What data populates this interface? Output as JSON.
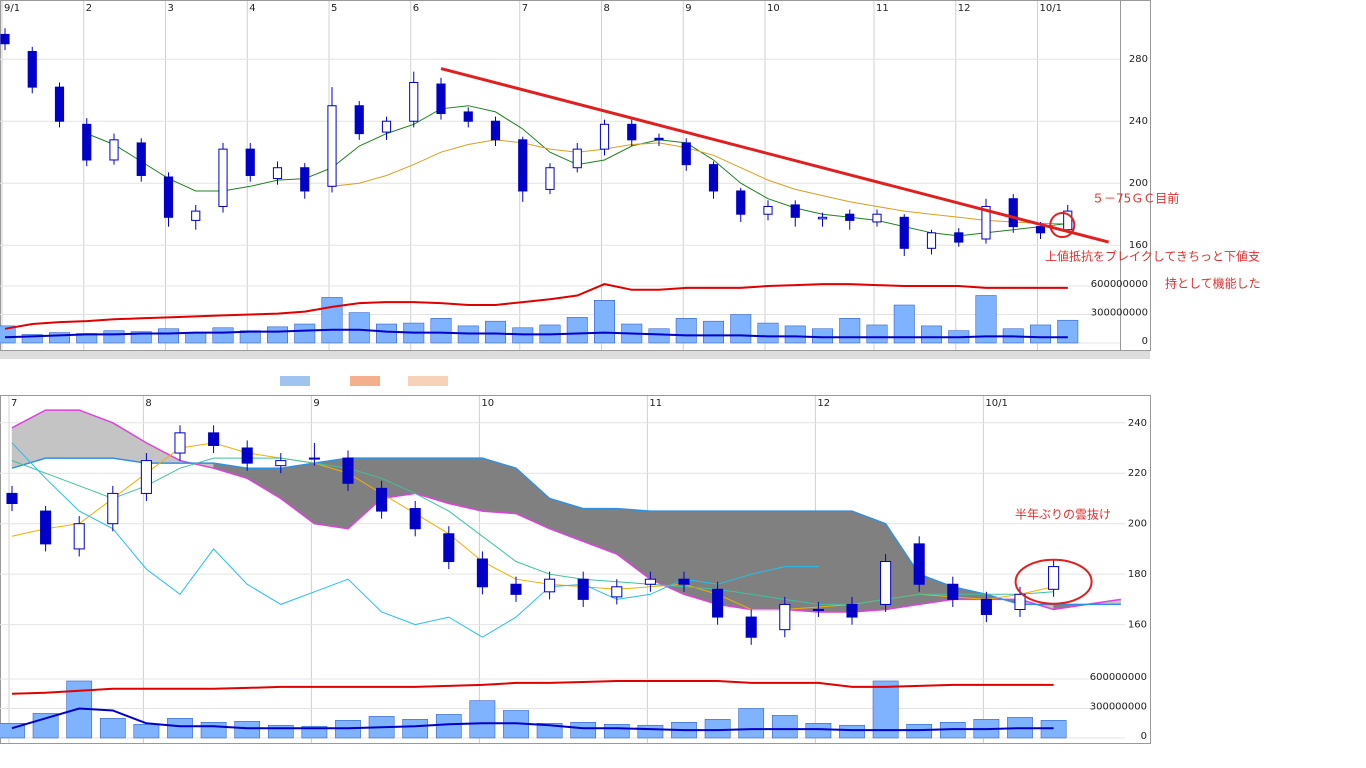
{
  "chart_data": [
    {
      "type": "candlestick",
      "categories": [
        "9/1",
        null,
        null,
        "2",
        null,
        null,
        "3",
        null,
        null,
        "4",
        null,
        null,
        "5",
        null,
        null,
        "6",
        null,
        null,
        null,
        "7",
        null,
        null,
        "8",
        null,
        null,
        "9",
        null,
        null,
        "10",
        null,
        null,
        null,
        "11",
        null,
        null,
        "12",
        null,
        null,
        "10/1",
        null
      ],
      "open": [
        296,
        285,
        262,
        238,
        215,
        226,
        204,
        176,
        185,
        222,
        203,
        210,
        198,
        250,
        233,
        240,
        264,
        246,
        240,
        228,
        196,
        210,
        222,
        238,
        229,
        226,
        212,
        195,
        180,
        186,
        177,
        180,
        175,
        178,
        158,
        168,
        164,
        190,
        172,
        170
      ],
      "high": [
        300,
        288,
        265,
        242,
        232,
        229,
        207,
        186,
        226,
        226,
        214,
        213,
        262,
        253,
        243,
        272,
        268,
        249,
        243,
        230,
        213,
        226,
        241,
        241,
        232,
        229,
        214,
        197,
        189,
        189,
        181,
        183,
        183,
        180,
        170,
        171,
        190,
        193,
        175,
        186
      ],
      "low": [
        286,
        258,
        236,
        211,
        212,
        201,
        172,
        170,
        181,
        201,
        199,
        190,
        194,
        228,
        228,
        236,
        241,
        236,
        224,
        188,
        193,
        207,
        218,
        224,
        224,
        208,
        190,
        175,
        176,
        172,
        172,
        170,
        172,
        153,
        154,
        159,
        161,
        168,
        164,
        168
      ],
      "close": [
        290,
        262,
        240,
        215,
        228,
        205,
        178,
        182,
        222,
        205,
        210,
        195,
        250,
        232,
        240,
        265,
        245,
        240,
        228,
        195,
        210,
        222,
        238,
        228,
        228,
        212,
        195,
        180,
        185,
        178,
        178,
        176,
        180,
        158,
        168,
        162,
        185,
        172,
        168,
        182
      ],
      "candle_color": "#0000c8",
      "ylim": [
        144,
        315
      ],
      "yticks": [
        160,
        200,
        240,
        280
      ],
      "lines": [
        {
          "color": "#208020",
          "values": [
            null,
            null,
            null,
            232,
            225,
            214,
            203,
            195,
            195,
            198,
            202,
            203,
            210,
            224,
            232,
            238,
            248,
            250,
            246,
            235,
            220,
            212,
            215,
            224,
            228,
            226,
            215,
            200,
            190,
            184,
            180,
            178,
            176,
            172,
            168,
            166,
            168,
            170,
            172,
            174
          ]
        },
        {
          "color": "#d8a020",
          "values": [
            null,
            null,
            null,
            null,
            null,
            null,
            null,
            null,
            null,
            null,
            null,
            null,
            198,
            200,
            205,
            212,
            220,
            225,
            228,
            226,
            222,
            220,
            222,
            225,
            226,
            223,
            218,
            210,
            202,
            196,
            192,
            188,
            185,
            182,
            180,
            178,
            176,
            175,
            174,
            174
          ]
        }
      ],
      "volume": [
        180000000,
        90000000,
        110000000,
        100000000,
        130000000,
        120000000,
        150000000,
        110000000,
        160000000,
        130000000,
        170000000,
        200000000,
        480000000,
        320000000,
        200000000,
        210000000,
        260000000,
        180000000,
        230000000,
        160000000,
        190000000,
        270000000,
        450000000,
        200000000,
        150000000,
        260000000,
        230000000,
        300000000,
        210000000,
        180000000,
        150000000,
        260000000,
        190000000,
        400000000,
        180000000,
        130000000,
        500000000,
        150000000,
        190000000,
        240000000
      ],
      "volume_color": "#7fb2ff",
      "volume_ylim": [
        0,
        600000000
      ],
      "volume_yticks": [
        0,
        300000000,
        600000000
      ],
      "volume_lines": [
        {
          "color": "#e00000",
          "values": [
            150000000,
            200000000,
            220000000,
            230000000,
            250000000,
            260000000,
            270000000,
            280000000,
            290000000,
            300000000,
            310000000,
            330000000,
            380000000,
            420000000,
            430000000,
            430000000,
            420000000,
            400000000,
            400000000,
            430000000,
            460000000,
            500000000,
            620000000,
            560000000,
            560000000,
            580000000,
            580000000,
            580000000,
            600000000,
            610000000,
            620000000,
            620000000,
            610000000,
            600000000,
            600000000,
            600000000,
            580000000,
            580000000,
            580000000,
            580000000
          ]
        },
        {
          "color": "#0000c8",
          "values": [
            60000000,
            70000000,
            80000000,
            90000000,
            90000000,
            100000000,
            100000000,
            110000000,
            110000000,
            120000000,
            120000000,
            130000000,
            140000000,
            140000000,
            120000000,
            110000000,
            110000000,
            100000000,
            100000000,
            90000000,
            90000000,
            100000000,
            110000000,
            100000000,
            90000000,
            80000000,
            80000000,
            80000000,
            70000000,
            70000000,
            60000000,
            60000000,
            60000000,
            60000000,
            60000000,
            60000000,
            70000000,
            70000000,
            60000000,
            60000000
          ]
        }
      ],
      "trendline": {
        "color": "#e02020",
        "x": [
          16,
          40.5
        ],
        "values": [
          274,
          162
        ]
      },
      "circle": {
        "color": "#e02020",
        "x": 38.8,
        "y": 173
      },
      "annotations": [
        "５－75ＧＣ目前",
        "上値抵抗をブレイクしてきちっと下値支",
        "持として機能した"
      ]
    },
    {
      "type": "candlestick",
      "categories": [
        "7",
        null,
        null,
        null,
        "8",
        null,
        null,
        null,
        null,
        "9",
        null,
        null,
        null,
        null,
        "10",
        null,
        null,
        null,
        null,
        "11",
        null,
        null,
        null,
        null,
        "12",
        null,
        null,
        null,
        null,
        "10/1",
        null,
        null,
        null,
        null
      ],
      "open": [
        212,
        205,
        190,
        200,
        212,
        228,
        236,
        230,
        223,
        226,
        226,
        214,
        206,
        196,
        186,
        176,
        173,
        178,
        171,
        176,
        178,
        174,
        163,
        158,
        166,
        168,
        168,
        192,
        176,
        170,
        166,
        174,
        null,
        null
      ],
      "high": [
        215,
        207,
        203,
        215,
        228,
        239,
        239,
        233,
        228,
        232,
        229,
        217,
        209,
        199,
        189,
        179,
        181,
        181,
        178,
        181,
        181,
        177,
        166,
        171,
        169,
        171,
        188,
        195,
        179,
        173,
        175,
        186,
        null,
        null
      ],
      "low": [
        205,
        189,
        187,
        197,
        209,
        225,
        228,
        221,
        220,
        223,
        213,
        202,
        195,
        182,
        172,
        169,
        170,
        167,
        168,
        173,
        173,
        160,
        152,
        155,
        163,
        160,
        165,
        173,
        167,
        161,
        163,
        171,
        null,
        null
      ],
      "close": [
        208,
        192,
        200,
        212,
        225,
        236,
        231,
        224,
        225,
        226,
        216,
        205,
        198,
        185,
        175,
        172,
        178,
        170,
        175,
        178,
        176,
        163,
        155,
        168,
        166,
        163,
        185,
        176,
        170,
        164,
        172,
        183,
        null,
        null
      ],
      "candle_color": "#0000c8",
      "ylim": [
        144,
        251
      ],
      "yticks": [
        160,
        180,
        200,
        220,
        240
      ],
      "cloud": {
        "span_a": {
          "color": "#e040e0",
          "values": [
            238,
            245,
            245,
            240,
            232,
            225,
            222,
            218,
            210,
            200,
            198,
            210,
            212,
            208,
            205,
            204,
            198,
            193,
            188,
            178,
            172,
            168,
            166,
            166,
            165,
            165,
            166,
            168,
            170,
            170,
            170,
            166,
            168,
            170
          ]
        },
        "span_b": {
          "color": "#3090e0",
          "values": [
            222,
            226,
            226,
            226,
            224,
            224,
            224,
            222,
            222,
            224,
            226,
            226,
            226,
            226,
            226,
            222,
            210,
            206,
            206,
            205,
            205,
            205,
            205,
            205,
            205,
            205,
            200,
            180,
            175,
            172,
            168,
            168,
            168,
            168
          ]
        },
        "fill_a_above": "#c4c4c4",
        "fill_b_above": "#808080"
      },
      "lines": [
        {
          "color": "#f0b000",
          "values": [
            195,
            198,
            200,
            210,
            220,
            230,
            232,
            228,
            226,
            224,
            220,
            212,
            204,
            196,
            185,
            178,
            176,
            175,
            174,
            175,
            176,
            172,
            166,
            166,
            167,
            168,
            170,
            172,
            171,
            170,
            172,
            175,
            null,
            null
          ]
        },
        {
          "color": "#40c0a0",
          "values": [
            225,
            220,
            215,
            210,
            215,
            222,
            226,
            226,
            226,
            224,
            222,
            218,
            212,
            205,
            195,
            185,
            180,
            178,
            177,
            176,
            175,
            174,
            172,
            170,
            168,
            168,
            170,
            172,
            172,
            172,
            172,
            173,
            null,
            null
          ]
        },
        {
          "color": "#20c0f0",
          "values": [
            232,
            218,
            205,
            198,
            182,
            172,
            190,
            176,
            168,
            173,
            178,
            165,
            160,
            163,
            155,
            163,
            175,
            176,
            170,
            172,
            178,
            176,
            180,
            183,
            183,
            null,
            null,
            null,
            null,
            null,
            null,
            null,
            null,
            null
          ]
        }
      ],
      "volume": [
        150000000,
        250000000,
        580000000,
        200000000,
        140000000,
        200000000,
        160000000,
        170000000,
        130000000,
        120000000,
        180000000,
        220000000,
        190000000,
        240000000,
        380000000,
        280000000,
        150000000,
        160000000,
        140000000,
        130000000,
        160000000,
        190000000,
        300000000,
        230000000,
        150000000,
        130000000,
        580000000,
        140000000,
        160000000,
        190000000,
        210000000,
        180000000,
        null,
        null
      ],
      "volume_color": "#7fb2ff",
      "volume_ylim": [
        0,
        600000000
      ],
      "volume_yticks": [
        0,
        300000000,
        600000000
      ],
      "volume_lines": [
        {
          "color": "#e00000",
          "values": [
            450000000,
            460000000,
            480000000,
            500000000,
            500000000,
            500000000,
            500000000,
            510000000,
            520000000,
            520000000,
            520000000,
            520000000,
            520000000,
            530000000,
            540000000,
            560000000,
            560000000,
            570000000,
            580000000,
            580000000,
            580000000,
            580000000,
            560000000,
            560000000,
            560000000,
            520000000,
            520000000,
            530000000,
            540000000,
            540000000,
            540000000,
            540000000,
            null,
            null
          ]
        },
        {
          "color": "#0000c8",
          "values": [
            100000000,
            200000000,
            300000000,
            280000000,
            150000000,
            120000000,
            120000000,
            100000000,
            100000000,
            100000000,
            100000000,
            110000000,
            120000000,
            140000000,
            150000000,
            150000000,
            130000000,
            100000000,
            100000000,
            90000000,
            80000000,
            80000000,
            90000000,
            90000000,
            90000000,
            80000000,
            80000000,
            80000000,
            90000000,
            90000000,
            100000000,
            100000000,
            null,
            null
          ]
        }
      ],
      "circle": {
        "color": "#e02020",
        "x": 31,
        "y": 177
      },
      "annotations": [
        "半年ぶりの雲抜け"
      ]
    }
  ]
}
